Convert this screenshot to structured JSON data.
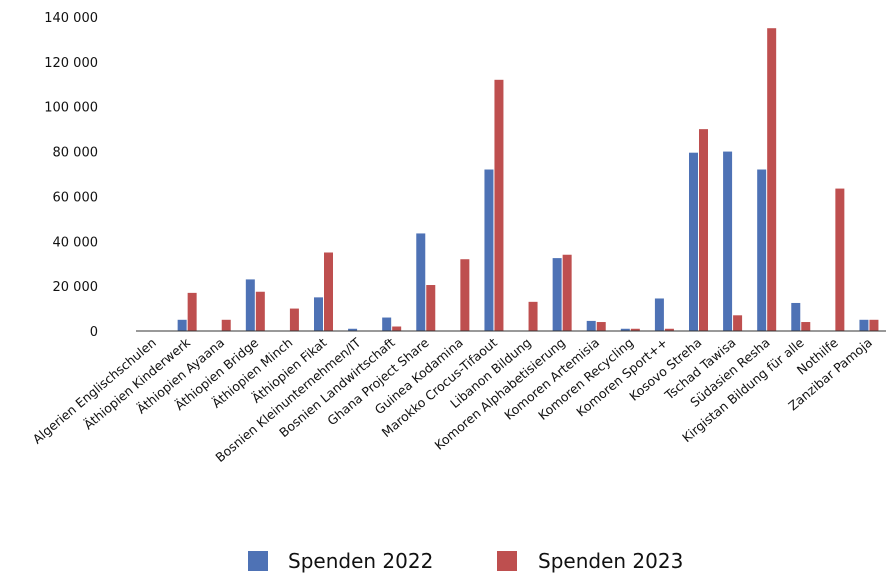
{
  "chart_data": {
    "type": "bar",
    "categories": [
      "Algerien Englischschulen",
      "Äthiopien Kinderwerk",
      "Äthiopien Ayaana",
      "Äthiopien Bridge",
      "Äthiopien Minch",
      "Äthiopien Fikat",
      "Bosnien Kleinunternehmen/IT",
      "Bosnien Landwirtschaft",
      "Ghana Project Share",
      "Guinea Kodamina",
      "Marokko Crocus-Tifaout",
      "Libanon Bildung",
      "Komoren Alphabetisierung",
      "Komoren Artemisia",
      "Komoren Recycling",
      "Komoren Sport++",
      "Kosovo Streha",
      "Tschad Tawisa",
      "Südasien Resha",
      "Kirgistan Bildung für alle",
      "Nothilfe",
      "Zanzibar Pamoja"
    ],
    "series": [
      {
        "name": "Spenden 2022",
        "color": "#4e72b5",
        "values": [
          0,
          5000,
          0,
          23000,
          0,
          15000,
          1000,
          6000,
          43500,
          0,
          72000,
          0,
          32500,
          4500,
          1000,
          14500,
          79500,
          80000,
          72000,
          12500,
          0,
          5000
        ]
      },
      {
        "name": "Spenden 2023",
        "color": "#be4f4f",
        "values": [
          0,
          17000,
          5000,
          17500,
          10000,
          35000,
          0,
          2000,
          20500,
          32000,
          112000,
          13000,
          34000,
          4000,
          1000,
          1000,
          90000,
          7000,
          135000,
          4000,
          63500,
          5000
        ]
      }
    ],
    "y_ticks": [
      "0",
      "20 000",
      "40 000",
      "60 000",
      "80 000",
      "100 000",
      "120 000",
      "140 000"
    ],
    "ylim": [
      0,
      140000
    ],
    "legend_position": "bottom-center",
    "title": "",
    "xlabel": "",
    "ylabel": "",
    "grid": false
  }
}
